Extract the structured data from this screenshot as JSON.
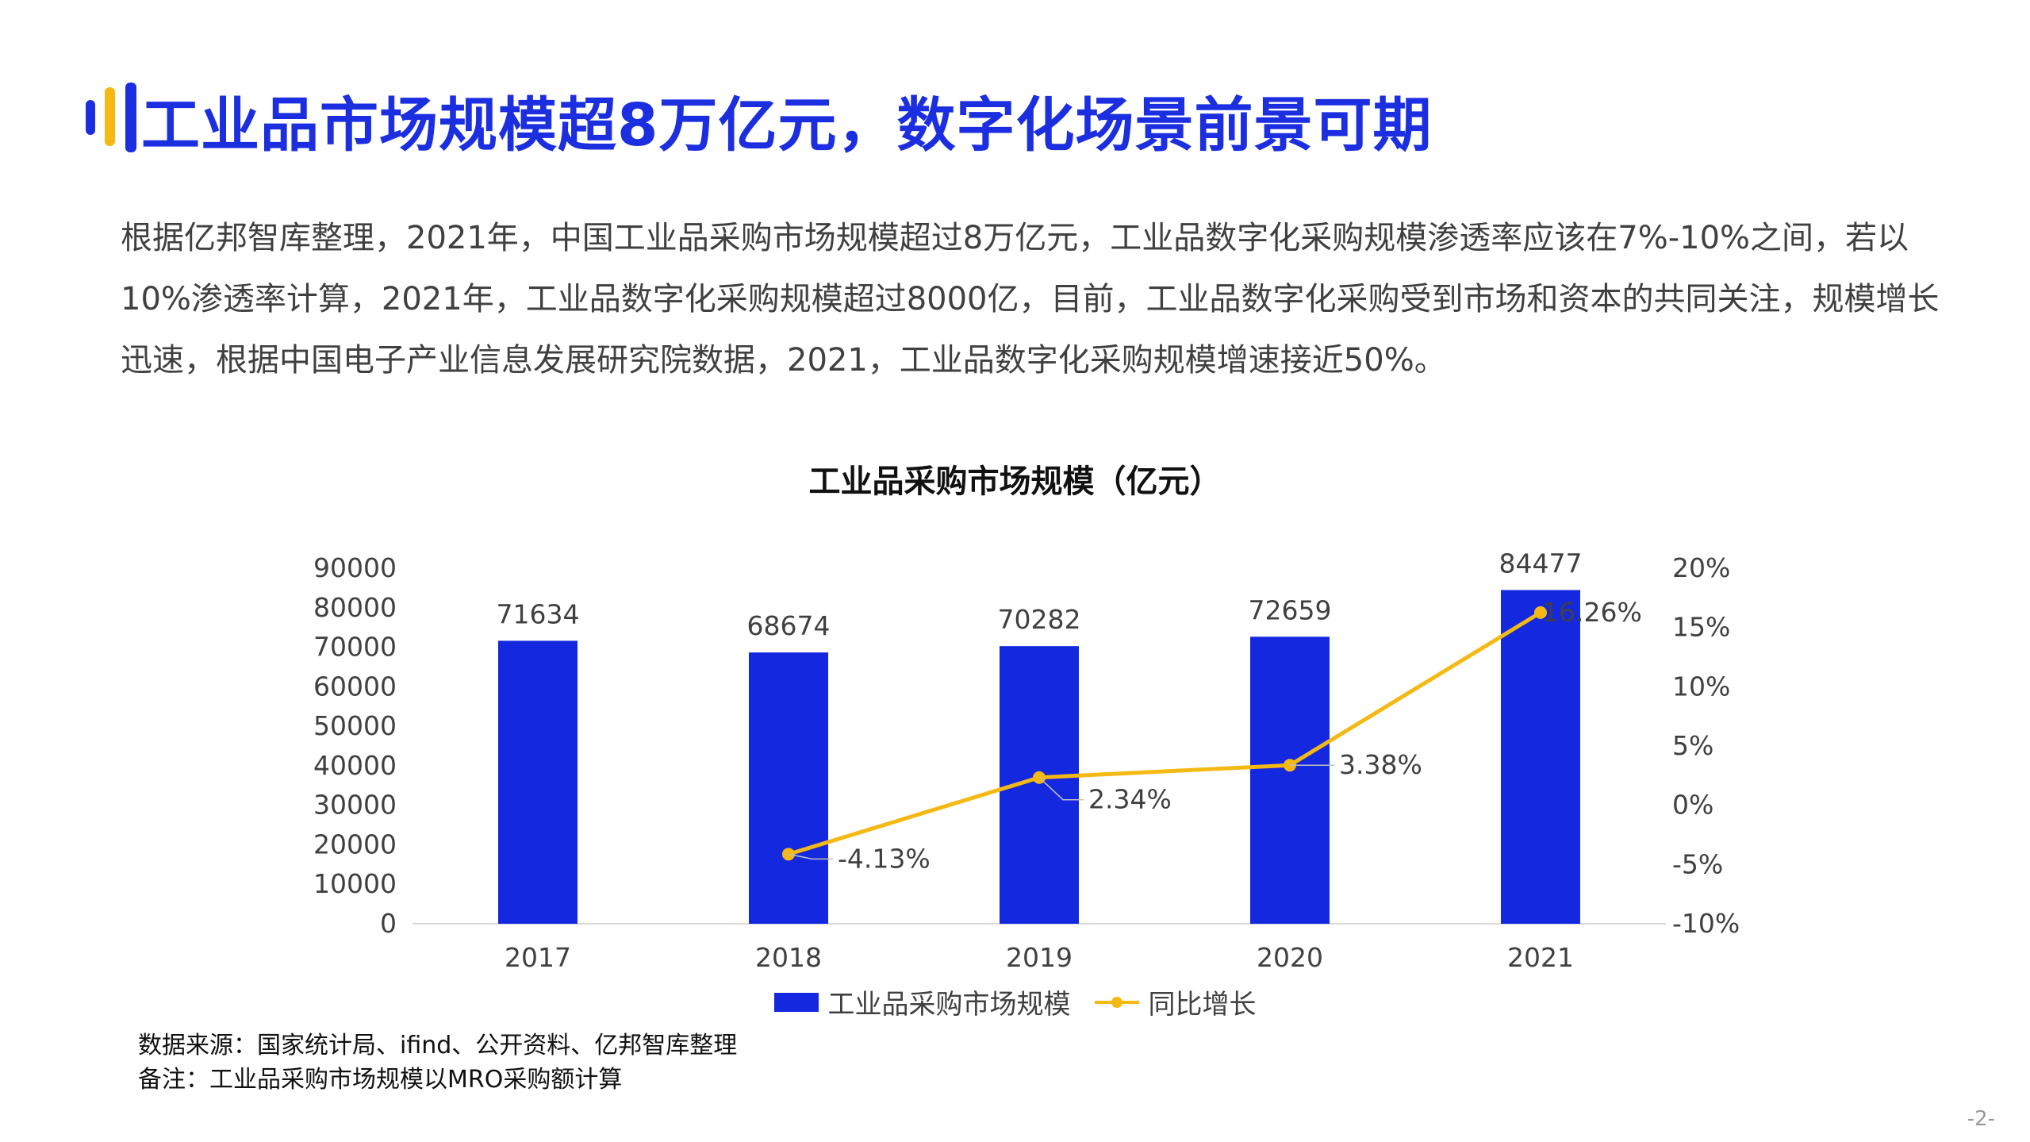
{
  "title": "工业品市场规模超8万亿元，数字化场景前景可期",
  "intro": "根据亿邦智库整理，2021年，中国工业品采购市场规模超过8万亿元，工业品数字化采购规模渗透率应该在7%-10%之间，若以10%渗透率计算，2021年，工业品数字化采购规模超过8000亿，目前，工业品数字化采购受到市场和资本的共同关注，规模增长迅速，根据中国电子产业信息发展研究院数据，2021，工业品数字化采购规模增速接近50%。",
  "colors": {
    "title": "#1b2ee0",
    "bar": "#1428e0",
    "line": "#f5b914",
    "logo_blue": "#1b2ee0",
    "logo_yellow": "#f5b914"
  },
  "chart_data": {
    "type": "bar",
    "title": "工业品采购市场规模（亿元）",
    "categories": [
      "2017",
      "2018",
      "2019",
      "2020",
      "2021"
    ],
    "series": [
      {
        "name": "工业品采购市场规模",
        "type": "bar",
        "axis": "left",
        "values": [
          71634,
          68674,
          70282,
          72659,
          84477
        ],
        "labels": [
          "71634",
          "68674",
          "70282",
          "72659",
          "84477"
        ]
      },
      {
        "name": "同比增长",
        "type": "line",
        "axis": "right",
        "values": [
          null,
          -4.13,
          2.34,
          3.38,
          16.26
        ],
        "labels": [
          "",
          "-4.13%",
          "2.34%",
          "3.38%",
          "16.26%"
        ]
      }
    ],
    "left_axis": {
      "min": 0,
      "max": 90000,
      "ticks": [
        "0",
        "10000",
        "20000",
        "30000",
        "40000",
        "50000",
        "60000",
        "70000",
        "80000",
        "90000"
      ]
    },
    "right_axis": {
      "min": -10,
      "max": 20,
      "ticks": [
        "-10%",
        "-5%",
        "0%",
        "5%",
        "10%",
        "15%",
        "20%"
      ]
    },
    "grid": false,
    "legend": "bottom"
  },
  "notes": {
    "source": "数据来源：国家统计局、ifind、公开资料、亿邦智库整理",
    "remark": "备注：工业品采购市场规模以MRO采购额计算"
  },
  "page_number": "-2-"
}
